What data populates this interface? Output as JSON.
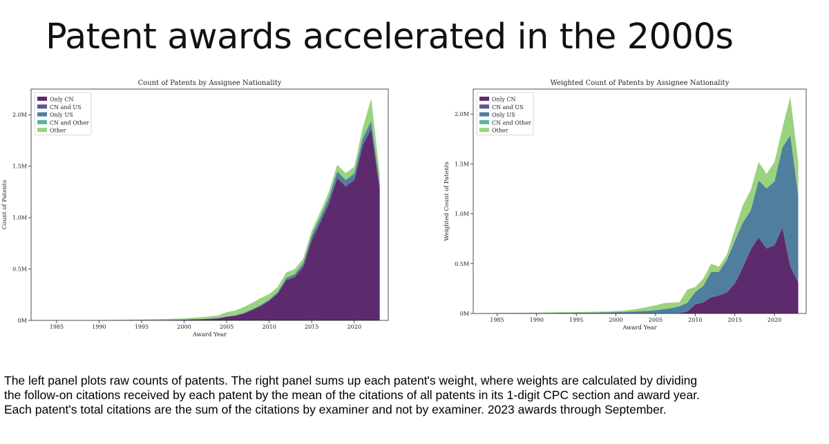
{
  "slide": {
    "title": "Patent awards accelerated in the 2000s",
    "caption": [
      "The left panel plots raw counts of patents. The right panel sums up each patent's weight, where weights are calculated by dividing",
      "the follow-on citations received by each patent by the mean of the citations of all patents in its 1-digit CPC section and award year.",
      "Each patent's total citations are the sum of the citations by examiner and not by examiner. 2023 awards through September."
    ]
  },
  "colors": {
    "Only CN": "#5e2a6e",
    "CN and US": "#5a5a91",
    "Only US": "#4f7f9c",
    "CN and Other": "#5fb3a0",
    "Other": "#9bd27e"
  },
  "chart_data": [
    {
      "type": "area",
      "stacked": true,
      "title": "Count of Patents by Assignee Nationality",
      "xlabel": "Award Year",
      "ylabel": "Count of Patents",
      "xlim": [
        1982,
        2024
      ],
      "ylim": [
        0,
        2250000
      ],
      "xticks": [
        1985,
        1990,
        1995,
        2000,
        2005,
        2010,
        2015,
        2020
      ],
      "yticks": [
        0,
        500000,
        1000000,
        1500000,
        2000000
      ],
      "ytick_labels": [
        "0M",
        "0.5M",
        "1.0M",
        "1.5M",
        "2.0M"
      ],
      "legend_position": "top-left",
      "x": [
        1983,
        1984,
        1985,
        1986,
        1987,
        1988,
        1989,
        1990,
        1991,
        1992,
        1993,
        1994,
        1995,
        1996,
        1997,
        1998,
        1999,
        2000,
        2001,
        2002,
        2003,
        2004,
        2005,
        2006,
        2007,
        2008,
        2009,
        2010,
        2011,
        2012,
        2013,
        2014,
        2015,
        2016,
        2017,
        2018,
        2019,
        2020,
        2021,
        2022,
        2023
      ],
      "series": [
        {
          "name": "Only CN",
          "values": [
            0,
            0,
            0,
            0,
            0,
            0,
            0,
            1000,
            1000,
            2000,
            2000,
            3000,
            3000,
            4000,
            4000,
            5000,
            6000,
            7000,
            10000,
            12000,
            15000,
            20000,
            35000,
            45000,
            65000,
            100000,
            140000,
            190000,
            260000,
            390000,
            420000,
            520000,
            780000,
            950000,
            1130000,
            1380000,
            1300000,
            1360000,
            1700000,
            1860000,
            1270000
          ]
        },
        {
          "name": "CN and US",
          "values": [
            0,
            0,
            0,
            0,
            0,
            0,
            0,
            0,
            0,
            0,
            0,
            0,
            0,
            0,
            0,
            0,
            0,
            0,
            0,
            500,
            500,
            1000,
            1000,
            1500,
            2000,
            2500,
            3000,
            3500,
            4000,
            5000,
            6000,
            7000,
            9000,
            10000,
            12000,
            14000,
            14000,
            15000,
            16000,
            17000,
            12000
          ]
        },
        {
          "name": "Only US",
          "values": [
            0,
            0,
            0,
            0,
            0,
            0,
            0,
            0,
            0,
            0,
            0,
            0,
            0,
            0,
            0,
            0,
            500,
            500,
            1000,
            1000,
            2000,
            2000,
            3000,
            4000,
            5000,
            6000,
            7000,
            9000,
            12000,
            18000,
            22000,
            28000,
            35000,
            40000,
            45000,
            50000,
            48000,
            50000,
            55000,
            58000,
            40000
          ]
        },
        {
          "name": "CN and Other",
          "values": [
            0,
            0,
            0,
            0,
            0,
            0,
            0,
            0,
            0,
            0,
            0,
            0,
            0,
            0,
            0,
            0,
            0,
            0,
            0,
            0,
            500,
            500,
            1000,
            1000,
            1500,
            2000,
            2500,
            3000,
            3500,
            4000,
            5000,
            6000,
            7000,
            8000,
            9000,
            10000,
            10000,
            11000,
            12000,
            13000,
            9000
          ]
        },
        {
          "name": "Other",
          "values": [
            1000,
            1000,
            1000,
            1000,
            1000,
            1500,
            2000,
            2500,
            3000,
            4000,
            4000,
            5000,
            6000,
            7000,
            8000,
            9000,
            10000,
            12000,
            14000,
            18000,
            20000,
            25000,
            40000,
            45000,
            55000,
            60000,
            65000,
            50000,
            45000,
            50000,
            45000,
            40000,
            40000,
            45000,
            50000,
            60000,
            60000,
            60000,
            90000,
            210000,
            90000
          ]
        }
      ]
    },
    {
      "type": "area",
      "stacked": true,
      "title": "Weighted Count of Patents by Assignee Nationality",
      "xlabel": "Award Year",
      "ylabel": "Weighted Count of Patents",
      "xlim": [
        1982,
        2024
      ],
      "ylim": [
        0,
        2250000
      ],
      "xticks": [
        1985,
        1990,
        1995,
        2000,
        2005,
        2010,
        2015,
        2020
      ],
      "yticks": [
        0,
        500000,
        1000000,
        1500000,
        2000000
      ],
      "ytick_labels": [
        "0M",
        "0.5M",
        "1.0M",
        "1.5M",
        "2.0M"
      ],
      "legend_position": "top-left",
      "x": [
        1983,
        1984,
        1985,
        1986,
        1987,
        1988,
        1989,
        1990,
        1991,
        1992,
        1993,
        1994,
        1995,
        1996,
        1997,
        1998,
        1999,
        2000,
        2001,
        2002,
        2003,
        2004,
        2005,
        2006,
        2007,
        2008,
        2009,
        2010,
        2011,
        2012,
        2013,
        2014,
        2015,
        2016,
        2017,
        2018,
        2019,
        2020,
        2021,
        2022,
        2023
      ],
      "series": [
        {
          "name": "Only CN",
          "values": [
            0,
            0,
            0,
            0,
            0,
            0,
            0,
            0,
            0,
            0,
            0,
            0,
            0,
            0,
            0,
            0,
            0,
            0,
            0,
            0,
            0,
            0,
            0,
            2000,
            3000,
            5000,
            20000,
            90000,
            110000,
            160000,
            180000,
            210000,
            300000,
            460000,
            640000,
            760000,
            650000,
            680000,
            860000,
            470000,
            310000
          ]
        },
        {
          "name": "CN and US",
          "values": [
            0,
            0,
            0,
            0,
            0,
            0,
            0,
            0,
            0,
            0,
            0,
            0,
            0,
            0,
            0,
            0,
            0,
            0,
            0,
            0,
            0,
            0,
            500,
            1000,
            1000,
            2000,
            3000,
            4000,
            5000,
            6000,
            7000,
            8000,
            9000,
            10000,
            11000,
            12000,
            12000,
            12000,
            13000,
            14000,
            10000
          ]
        },
        {
          "name": "Only US",
          "values": [
            2000,
            2000,
            3000,
            3000,
            4000,
            4000,
            5000,
            5000,
            6000,
            6000,
            7000,
            7000,
            8000,
            8000,
            9000,
            10000,
            11000,
            13000,
            15000,
            18000,
            22000,
            26000,
            32000,
            40000,
            50000,
            65000,
            85000,
            120000,
            160000,
            250000,
            230000,
            320000,
            420000,
            440000,
            380000,
            560000,
            590000,
            630000,
            790000,
            1300000,
            860000
          ]
        },
        {
          "name": "CN and Other",
          "values": [
            0,
            0,
            0,
            0,
            0,
            0,
            0,
            0,
            0,
            0,
            0,
            0,
            0,
            0,
            0,
            0,
            0,
            0,
            0,
            0,
            0,
            0,
            0,
            0,
            500,
            1000,
            1000,
            1500,
            2000,
            2500,
            3000,
            3500,
            4000,
            5000,
            6000,
            7000,
            7000,
            7000,
            8000,
            9000,
            7000
          ]
        },
        {
          "name": "Other",
          "values": [
            2000,
            2000,
            2000,
            3000,
            3000,
            3000,
            4000,
            4000,
            4000,
            5000,
            5000,
            6000,
            6000,
            7000,
            8000,
            9000,
            10000,
            12000,
            15000,
            20000,
            28000,
            40000,
            50000,
            60000,
            55000,
            40000,
            130000,
            50000,
            70000,
            80000,
            50000,
            50000,
            110000,
            170000,
            200000,
            180000,
            140000,
            190000,
            190000,
            380000,
            330000
          ]
        }
      ]
    }
  ]
}
